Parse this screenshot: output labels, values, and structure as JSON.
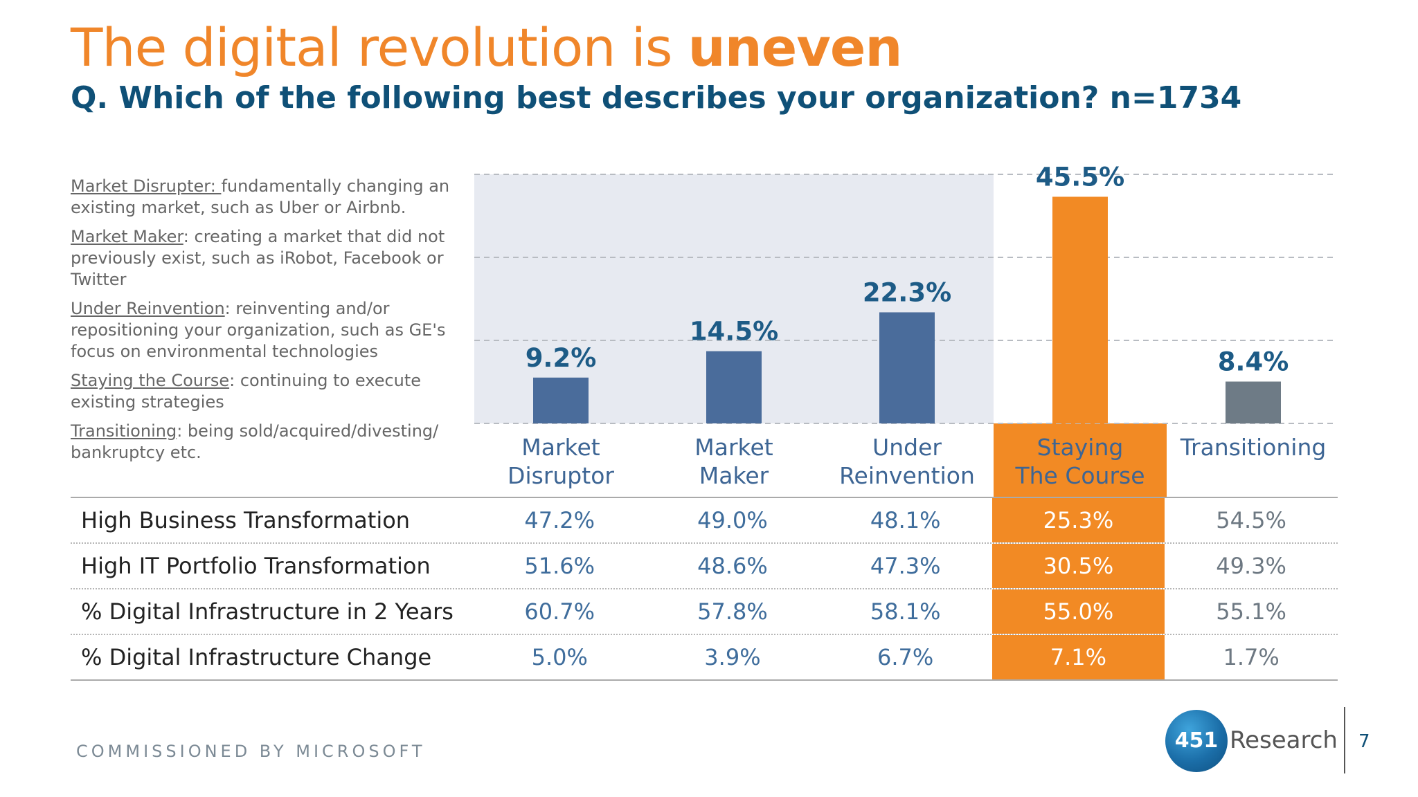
{
  "title": {
    "prefix": "The digital revolution is ",
    "emphasis": "uneven"
  },
  "subtitle": "Q. Which of the following best describes your organization? n=1734",
  "definitions": [
    {
      "term": "Market Disrupter: ",
      "text": "fundamentally changing an existing market, such as Uber or Airbnb."
    },
    {
      "term": "Market Maker",
      "text": ": creating a market that did not previously exist, such as iRobot, Facebook or Twitter"
    },
    {
      "term": "Under Reinvention",
      "text": ": reinventing and/or repositioning your organization, such as GE's focus on environmental technologies"
    },
    {
      "term": "Staying the Course",
      "text": ": continuing to execute existing strategies"
    },
    {
      "term": "Transitioning",
      "text": ": being sold/acquired/divesting/ bankruptcy etc."
    }
  ],
  "chart_data": {
    "type": "bar",
    "categories": [
      [
        "Market",
        "Disruptor"
      ],
      [
        "Market",
        "Maker"
      ],
      [
        "Under",
        "Reinvention"
      ],
      [
        "Staying",
        "The Course"
      ],
      [
        "Transitioning"
      ]
    ],
    "values": [
      9.2,
      14.5,
      22.3,
      45.5,
      8.4
    ],
    "data_labels": [
      "9.2%",
      "14.5%",
      "22.3%",
      "45.5%",
      "8.4%"
    ],
    "ylim": [
      0,
      50
    ],
    "grid": "dashed horizontal",
    "colors": [
      "#4a6c9b",
      "#4a6c9b",
      "#4a6c9b",
      "#f28a24",
      "#6e7b86"
    ],
    "highlight_index": 3
  },
  "metrics": {
    "rows": [
      {
        "label": "High Business Transformation",
        "values": [
          "47.2%",
          "49.0%",
          "48.1%",
          "25.3%",
          "54.5%"
        ]
      },
      {
        "label": "High IT Portfolio Transformation",
        "values": [
          "51.6%",
          "48.6%",
          "47.3%",
          "30.5%",
          "49.3%"
        ]
      },
      {
        "label": "% Digital Infrastructure in 2 Years",
        "values": [
          "60.7%",
          "57.8%",
          "58.1%",
          "55.0%",
          "55.1%"
        ]
      },
      {
        "label": "% Digital Infrastructure Change",
        "values": [
          "5.0%",
          "3.9%",
          "6.7%",
          "7.1%",
          "1.7%"
        ]
      }
    ]
  },
  "footer": {
    "commissioned": "COMMISSIONED BY MICROSOFT",
    "logo_number": "451",
    "logo_word": "Research",
    "page_number": "7"
  },
  "colors": {
    "title": "#f0862a",
    "subtitle": "#0f5077",
    "bar": "#4a6c9b",
    "highlight": "#f28a24",
    "transitioning": "#6e7b86",
    "shade": "#e7eaf1"
  }
}
